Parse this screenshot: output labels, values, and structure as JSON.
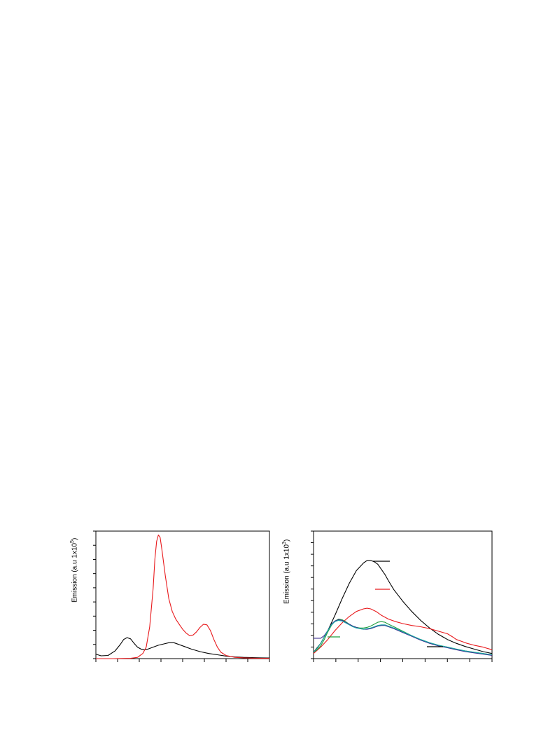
{
  "chart_data": [
    {
      "type": "line",
      "ylabel_prefix": "Emission (a.u 1x10",
      "ylabel_exp": "5",
      "ylabel_suffix": ")",
      "xlim": [
        0,
        100
      ],
      "ylim": [
        0,
        100
      ],
      "series": [
        {
          "color": "#000000",
          "x": [
            0,
            3,
            7,
            11,
            14,
            16,
            18,
            20,
            22,
            24,
            26,
            28,
            30,
            33,
            36,
            39,
            42,
            45,
            48,
            51,
            55,
            60,
            65,
            70,
            75,
            80,
            85,
            90,
            95,
            100
          ],
          "y": [
            3.5,
            2.2,
            2.5,
            6,
            11,
            15,
            16.5,
            15.5,
            12,
            9,
            7.5,
            7,
            7.5,
            9,
            10.5,
            11.5,
            12.5,
            12.5,
            11,
            9.5,
            7.5,
            5.5,
            4,
            3,
            2,
            1.4,
            1,
            0.8,
            0.6,
            0.5
          ]
        },
        {
          "color": "#e8191c",
          "x": [
            0,
            10,
            20,
            24,
            27,
            29,
            31,
            33,
            34,
            35,
            36,
            37,
            38,
            40,
            42,
            44,
            46,
            48,
            50,
            52,
            54,
            56,
            58,
            60,
            62,
            64,
            66,
            68,
            70,
            72,
            75,
            80,
            85,
            90,
            95,
            100
          ],
          "y": [
            0,
            0,
            0.2,
            1,
            4,
            9,
            25,
            55,
            78,
            92,
            97,
            95,
            86,
            65,
            47,
            37,
            31,
            27,
            23,
            20,
            18,
            18.5,
            21,
            24.5,
            27,
            26.5,
            22,
            15,
            9,
            5,
            2.5,
            1,
            0.6,
            0.4,
            0.3,
            0.3
          ]
        }
      ]
    },
    {
      "type": "line",
      "ylabel_prefix": "Emission (a.u 1x10",
      "ylabel_exp": "3",
      "ylabel_suffix": ")",
      "xlim": [
        0,
        100
      ],
      "ylim": [
        0,
        100
      ],
      "series": [
        {
          "color": "#000000",
          "x": [
            0,
            4,
            8,
            12,
            16,
            20,
            24,
            28,
            30,
            32,
            34,
            36,
            38,
            40,
            42,
            45,
            50,
            55,
            60,
            65,
            70,
            75,
            80,
            85,
            90,
            95,
            100
          ],
          "y": [
            5,
            12,
            22,
            34,
            47,
            59,
            69,
            75,
            77,
            77,
            76,
            74,
            70,
            66,
            61,
            54,
            45,
            37,
            30,
            24,
            19,
            15,
            12,
            9.5,
            7.5,
            5.5,
            4
          ]
        },
        {
          "color": "#e8191c",
          "x": [
            0,
            4,
            8,
            12,
            16,
            20,
            24,
            28,
            30,
            32,
            35,
            38,
            42,
            46,
            50,
            55,
            60,
            65,
            70,
            75,
            78,
            80,
            83,
            86,
            90,
            95,
            100
          ],
          "y": [
            4,
            9,
            15,
            22,
            28,
            33,
            37,
            39,
            39.5,
            39,
            37,
            34,
            31,
            29,
            27.5,
            26,
            25,
            23.5,
            21.5,
            19.5,
            17,
            15,
            13.5,
            12,
            10.5,
            9,
            7
          ]
        },
        {
          "color": "#1f9d3c",
          "x": [
            0,
            2,
            4,
            6,
            8,
            10,
            12,
            14,
            16,
            18,
            20,
            22,
            24,
            26,
            28,
            30,
            32,
            34,
            36,
            38,
            40,
            42,
            45,
            50,
            55,
            60,
            65,
            70,
            75,
            80,
            85,
            90,
            95,
            100
          ],
          "y": [
            5,
            7,
            10,
            15,
            21,
            26,
            29.5,
            31,
            30.5,
            29,
            27,
            25.5,
            24.5,
            24,
            24,
            24.5,
            25.5,
            27,
            28.5,
            29,
            28.5,
            27,
            25,
            21.5,
            18,
            15,
            12.5,
            10.5,
            9,
            7.5,
            6,
            5,
            4,
            3
          ]
        },
        {
          "color": "#3b2a8f",
          "x": [
            0,
            2,
            4,
            6,
            8,
            10,
            12,
            14,
            16,
            18,
            20,
            22,
            24,
            26,
            28,
            30,
            32,
            34,
            36,
            38,
            40,
            42,
            45,
            50,
            55,
            60,
            65,
            70,
            75,
            80,
            85,
            90,
            95,
            100
          ],
          "y": [
            16,
            16,
            16,
            18,
            22,
            27,
            29.5,
            30.5,
            30,
            28.5,
            27,
            25.5,
            24.5,
            23.5,
            23,
            23,
            23.5,
            24.5,
            25.5,
            26,
            26,
            25,
            23.5,
            20.5,
            17.5,
            14.5,
            12,
            10,
            8.5,
            7,
            5.5,
            4.5,
            3.5,
            2.5
          ]
        },
        {
          "color": "#17a6a6",
          "x": [
            0,
            2,
            4,
            6,
            8,
            10,
            12,
            14,
            16,
            18,
            20,
            22,
            24,
            26,
            28,
            30,
            32,
            34,
            36,
            38,
            40,
            42,
            45,
            50,
            55,
            60,
            65,
            70,
            75,
            80,
            85,
            90,
            95,
            100
          ],
          "y": [
            5,
            8,
            12,
            17,
            22,
            26.5,
            29,
            30,
            29.5,
            28,
            26.5,
            25,
            24,
            23.5,
            23,
            23.5,
            24,
            25,
            26,
            26.5,
            26.5,
            25.5,
            24,
            21,
            18,
            15,
            12.5,
            10.5,
            9,
            7.5,
            6,
            5,
            4,
            3
          ]
        }
      ]
    }
  ]
}
